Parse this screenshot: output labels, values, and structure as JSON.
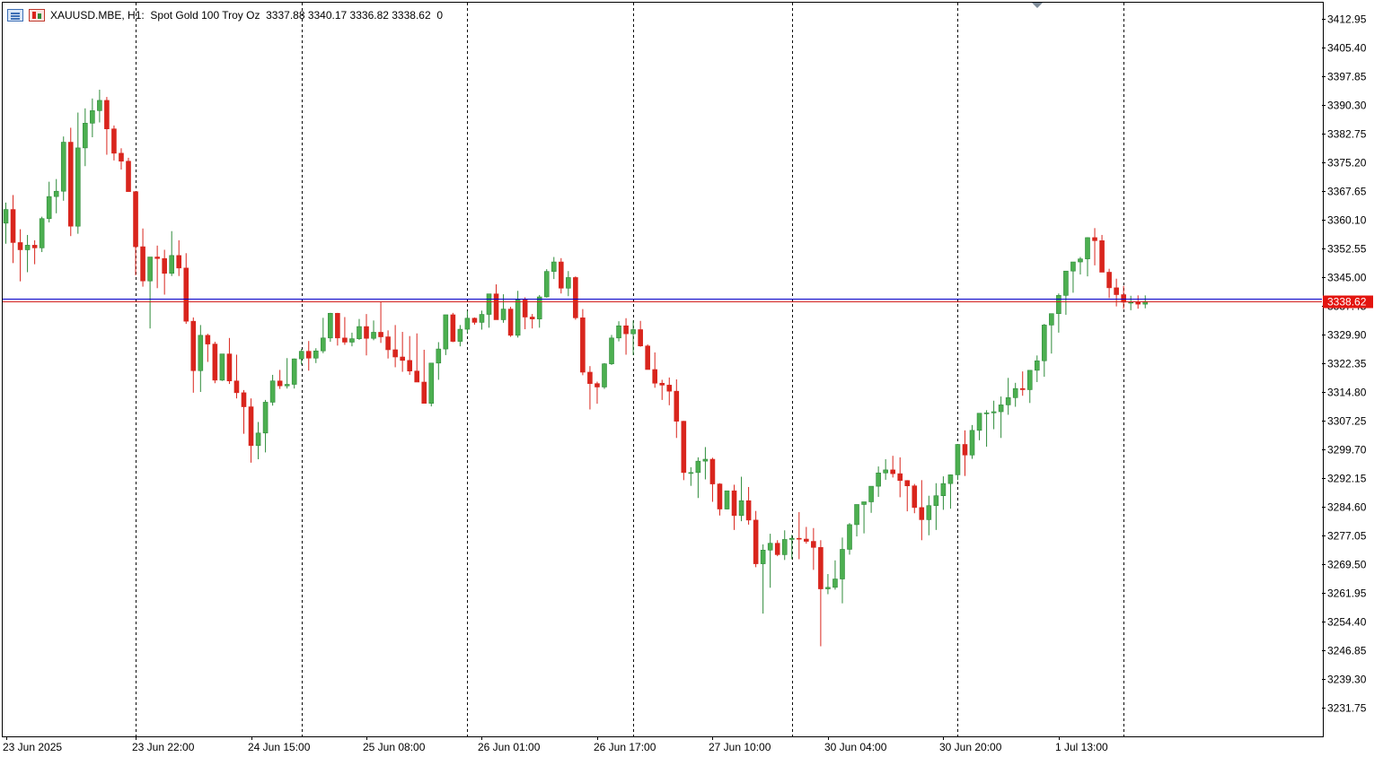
{
  "header": {
    "symbol": "XAUUSD.MBE",
    "timeframe": "H1:",
    "description": "Spot Gold 100 Troy Oz",
    "ohlc": "3337.88 3340.17 3336.82 3338.62",
    "extra": "0",
    "icons": [
      "symbol-menu-icon",
      "chart-type-icon"
    ]
  },
  "chart_data": {
    "type": "candlestick",
    "colors": {
      "up": "#2e8b3a",
      "up_fill": "#4caf50",
      "down": "#d9251d",
      "grid": "#000000",
      "bid_line": "#0000cd",
      "ask_line": "#d9251d",
      "price_label": "#e3140f"
    },
    "y_ticks": [
      "3412.95",
      "3405.40",
      "3397.85",
      "3390.30",
      "3382.75",
      "3375.20",
      "3367.65",
      "3360.10",
      "3352.55",
      "3345.00",
      "3337.45",
      "3329.90",
      "3322.35",
      "3314.80",
      "3307.25",
      "3299.70",
      "3292.15",
      "3284.60",
      "3277.05",
      "3269.50",
      "3261.95",
      "3254.40",
      "3246.85",
      "3239.30",
      "3231.75"
    ],
    "ylim": [
      3226.5,
      3417.0
    ],
    "x_labels": [
      "23 Jun 2025",
      "23 Jun 22:00",
      "24 Jun 15:00",
      "25 Jun 08:00",
      "26 Jun 01:00",
      "26 Jun 17:00",
      "27 Jun 10:00",
      "30 Jun 04:00",
      "30 Jun 20:00",
      "1 Jul 13:00"
    ],
    "x_label_index": [
      0,
      18,
      34,
      50,
      66,
      82,
      98,
      114,
      130,
      146
    ],
    "separator_index": [
      18,
      41,
      64,
      87,
      109,
      132,
      155
    ],
    "current_price": "3338.62",
    "bid": 3338.62,
    "ask": 3339.45,
    "candles": [
      [
        3359.2,
        3364.6,
        3353.8,
        3362.8
      ],
      [
        3362.8,
        3366.6,
        3348.7,
        3354.1
      ],
      [
        3354.1,
        3357.6,
        3343.9,
        3352.2
      ],
      [
        3352.2,
        3356.1,
        3346.3,
        3353.4
      ],
      [
        3353.4,
        3354.7,
        3348.4,
        3352.7
      ],
      [
        3352.7,
        3360.9,
        3351.6,
        3360.4
      ],
      [
        3360.4,
        3370.1,
        3359.4,
        3366.2
      ],
      [
        3366.2,
        3370.8,
        3361.8,
        3367.6
      ],
      [
        3367.6,
        3382.0,
        3365.1,
        3380.5
      ],
      [
        3380.5,
        3384.3,
        3355.8,
        3358.4
      ],
      [
        3358.4,
        3388.3,
        3356.4,
        3379.0
      ],
      [
        3379.0,
        3389.4,
        3374.2,
        3385.5
      ],
      [
        3385.5,
        3392.0,
        3381.8,
        3388.8
      ],
      [
        3388.8,
        3394.3,
        3385.7,
        3391.5
      ],
      [
        3391.5,
        3392.4,
        3377.2,
        3384.0
      ],
      [
        3384.0,
        3384.9,
        3375.7,
        3377.6
      ],
      [
        3377.6,
        3378.9,
        3373.3,
        3375.5
      ],
      [
        3375.5,
        3376.4,
        3367.5,
        3367.5
      ],
      [
        3367.5,
        3367.5,
        3345.5,
        3353.0
      ],
      [
        3353.0,
        3357.8,
        3342.5,
        3344.0
      ],
      [
        3344.0,
        3350.2,
        3331.5,
        3350.3
      ],
      [
        3350.3,
        3353.3,
        3342.1,
        3349.9
      ],
      [
        3349.9,
        3352.2,
        3340.4,
        3346.0
      ],
      [
        3346.0,
        3357.1,
        3345.3,
        3350.7
      ],
      [
        3350.7,
        3354.7,
        3345.3,
        3347.4
      ],
      [
        3347.4,
        3351.3,
        3332.7,
        3333.4
      ],
      [
        3333.4,
        3334.4,
        3314.6,
        3320.4
      ],
      [
        3320.4,
        3332.4,
        3314.8,
        3329.7
      ],
      [
        3329.7,
        3330.1,
        3322.7,
        3327.4
      ],
      [
        3327.4,
        3328.0,
        3317.1,
        3317.9
      ],
      [
        3317.9,
        3324.6,
        3317.7,
        3324.8
      ],
      [
        3324.8,
        3329.0,
        3316.9,
        3317.7
      ],
      [
        3317.7,
        3324.6,
        3313.1,
        3314.6
      ],
      [
        3314.6,
        3315.3,
        3303.8,
        3310.9
      ],
      [
        3310.9,
        3313.1,
        3296.2,
        3300.7
      ],
      [
        3300.7,
        3306.9,
        3297.1,
        3304.0
      ],
      [
        3304.0,
        3312.7,
        3298.9,
        3312.1
      ],
      [
        3312.1,
        3319.3,
        3311.2,
        3317.7
      ],
      [
        3317.7,
        3320.6,
        3315.6,
        3316.4
      ],
      [
        3316.4,
        3323.7,
        3315.7,
        3316.8
      ],
      [
        3316.8,
        3323.6,
        3315.7,
        3323.5
      ],
      [
        3323.5,
        3326.1,
        3322.0,
        3325.5
      ],
      [
        3325.5,
        3328.2,
        3320.4,
        3323.7
      ],
      [
        3323.7,
        3326.3,
        3322.4,
        3325.6
      ],
      [
        3325.6,
        3334.3,
        3325.0,
        3329.0
      ],
      [
        3329.0,
        3335.6,
        3328.0,
        3335.5
      ],
      [
        3335.5,
        3335.6,
        3327.0,
        3329.0
      ],
      [
        3329.0,
        3334.5,
        3327.2,
        3327.9
      ],
      [
        3327.9,
        3330.4,
        3326.8,
        3328.8
      ],
      [
        3328.8,
        3334.0,
        3328.5,
        3332.0
      ],
      [
        3332.0,
        3335.3,
        3324.4,
        3328.9
      ],
      [
        3328.9,
        3333.6,
        3328.4,
        3330.5
      ],
      [
        3330.5,
        3338.4,
        3327.7,
        3329.3
      ],
      [
        3329.3,
        3331.0,
        3323.6,
        3325.9
      ],
      [
        3325.9,
        3332.4,
        3321.3,
        3324.0
      ],
      [
        3324.0,
        3330.6,
        3320.1,
        3323.1
      ],
      [
        3323.1,
        3329.5,
        3319.3,
        3320.3
      ],
      [
        3320.3,
        3330.2,
        3318.7,
        3317.4
      ],
      [
        3317.4,
        3325.9,
        3312.3,
        3311.8
      ],
      [
        3311.8,
        3322.4,
        3311.0,
        3322.4
      ],
      [
        3322.4,
        3327.9,
        3318.0,
        3326.1
      ],
      [
        3326.1,
        3335.1,
        3324.5,
        3335.1
      ],
      [
        3335.1,
        3335.6,
        3327.9,
        3328.1
      ],
      [
        3328.1,
        3332.4,
        3326.8,
        3331.3
      ],
      [
        3331.3,
        3336.2,
        3330.3,
        3334.2
      ],
      [
        3334.2,
        3334.4,
        3332.5,
        3333.1
      ],
      [
        3333.1,
        3336.2,
        3331.2,
        3335.2
      ],
      [
        3335.2,
        3340.6,
        3331.7,
        3340.6
      ],
      [
        3340.6,
        3343.1,
        3334.6,
        3333.8
      ],
      [
        3333.8,
        3340.5,
        3333.0,
        3336.6
      ],
      [
        3336.6,
        3337.2,
        3329.3,
        3329.7
      ],
      [
        3329.7,
        3341.4,
        3329.1,
        3339.0
      ],
      [
        3339.0,
        3339.7,
        3331.3,
        3334.5
      ],
      [
        3334.5,
        3335.3,
        3331.5,
        3334.0
      ],
      [
        3334.0,
        3340.3,
        3331.7,
        3339.8
      ],
      [
        3339.8,
        3347.1,
        3339.6,
        3346.5
      ],
      [
        3346.5,
        3350.3,
        3344.5,
        3349.0
      ],
      [
        3349.0,
        3350.0,
        3340.7,
        3342.1
      ],
      [
        3342.1,
        3346.6,
        3340.0,
        3344.9
      ],
      [
        3344.9,
        3345.2,
        3333.8,
        3334.3
      ],
      [
        3334.3,
        3336.6,
        3319.2,
        3320.0
      ],
      [
        3320.0,
        3321.6,
        3310.2,
        3317.0
      ],
      [
        3317.0,
        3317.5,
        3311.7,
        3316.1
      ],
      [
        3316.1,
        3322.4,
        3315.6,
        3322.2
      ],
      [
        3322.2,
        3329.8,
        3321.9,
        3329.0
      ],
      [
        3329.0,
        3333.4,
        3328.1,
        3332.2
      ],
      [
        3332.2,
        3334.2,
        3324.6,
        3330.1
      ],
      [
        3330.1,
        3333.6,
        3324.5,
        3331.2
      ],
      [
        3331.2,
        3333.5,
        3326.7,
        3326.9
      ],
      [
        3326.9,
        3327.3,
        3320.8,
        3320.7
      ],
      [
        3320.7,
        3325.2,
        3315.9,
        3317.1
      ],
      [
        3317.1,
        3318.0,
        3312.7,
        3316.6
      ],
      [
        3316.6,
        3318.6,
        3311.3,
        3315.0
      ],
      [
        3315.0,
        3318.1,
        3302.7,
        3307.1
      ],
      [
        3307.1,
        3307.2,
        3291.6,
        3293.6
      ],
      [
        3293.6,
        3295.0,
        3290.1,
        3293.6
      ],
      [
        3293.6,
        3297.6,
        3286.9,
        3296.6
      ],
      [
        3296.6,
        3300.3,
        3291.8,
        3297.1
      ],
      [
        3297.1,
        3297.5,
        3285.9,
        3290.6
      ],
      [
        3290.6,
        3290.8,
        3282.3,
        3284.0
      ],
      [
        3284.0,
        3288.5,
        3283.9,
        3288.8
      ],
      [
        3288.8,
        3290.4,
        3278.5,
        3282.3
      ],
      [
        3282.3,
        3292.5,
        3280.8,
        3286.2
      ],
      [
        3286.2,
        3289.8,
        3279.9,
        3281.1
      ],
      [
        3281.1,
        3283.5,
        3268.7,
        3269.6
      ],
      [
        3269.6,
        3274.7,
        3256.5,
        3273.2
      ],
      [
        3273.2,
        3277.5,
        3263.3,
        3275.0
      ],
      [
        3275.0,
        3275.8,
        3271.6,
        3272.0
      ],
      [
        3272.0,
        3278.4,
        3270.6,
        3276.0
      ],
      [
        3276.0,
        3277.2,
        3270.8,
        3276.3
      ],
      [
        3276.3,
        3283.2,
        3270.8,
        3276.1
      ],
      [
        3276.1,
        3279.3,
        3274.9,
        3275.5
      ],
      [
        3275.5,
        3279.0,
        3268.0,
        3273.9
      ],
      [
        3273.9,
        3275.8,
        3247.9,
        3263.0
      ],
      [
        3263.0,
        3266.9,
        3261.6,
        3263.4
      ],
      [
        3263.4,
        3270.5,
        3262.8,
        3265.6
      ],
      [
        3265.6,
        3276.5,
        3259.2,
        3273.4
      ],
      [
        3273.4,
        3280.3,
        3272.0,
        3279.9
      ],
      [
        3279.9,
        3283.5,
        3276.8,
        3285.2
      ],
      [
        3285.2,
        3285.6,
        3277.6,
        3285.9
      ],
      [
        3285.9,
        3289.9,
        3283.0,
        3290.0
      ],
      [
        3290.0,
        3295.2,
        3287.2,
        3293.5
      ],
      [
        3293.5,
        3297.1,
        3291.7,
        3294.3
      ],
      [
        3294.3,
        3298.0,
        3292.3,
        3293.3
      ],
      [
        3293.3,
        3297.6,
        3287.1,
        3291.5
      ],
      [
        3291.5,
        3291.6,
        3283.4,
        3290.1
      ],
      [
        3290.1,
        3290.6,
        3282.9,
        3284.4
      ],
      [
        3284.4,
        3291.6,
        3275.8,
        3281.2
      ],
      [
        3281.2,
        3287.5,
        3277.1,
        3284.9
      ],
      [
        3284.9,
        3290.8,
        3278.5,
        3287.5
      ],
      [
        3287.5,
        3292.6,
        3283.8,
        3290.7
      ],
      [
        3290.7,
        3293.1,
        3284.1,
        3293.0
      ],
      [
        3293.0,
        3301.1,
        3291.6,
        3301.0
      ],
      [
        3301.0,
        3304.7,
        3292.7,
        3298.2
      ],
      [
        3298.2,
        3306.1,
        3297.2,
        3304.7
      ],
      [
        3304.7,
        3309.1,
        3302.1,
        3309.2
      ],
      [
        3309.2,
        3310.0,
        3300.4,
        3309.3
      ],
      [
        3309.3,
        3312.5,
        3305.0,
        3309.6
      ],
      [
        3309.6,
        3313.6,
        3302.7,
        3311.4
      ],
      [
        3311.4,
        3318.5,
        3308.8,
        3313.3
      ],
      [
        3313.3,
        3317.2,
        3310.9,
        3315.7
      ],
      [
        3315.7,
        3320.2,
        3313.8,
        3315.4
      ],
      [
        3315.4,
        3320.0,
        3311.9,
        3320.5
      ],
      [
        3320.5,
        3324.4,
        3317.4,
        3323.0
      ],
      [
        3323.0,
        3332.7,
        3318.8,
        3332.4
      ],
      [
        3332.4,
        3335.3,
        3324.9,
        3335.4
      ],
      [
        3335.4,
        3340.7,
        3330.4,
        3340.2
      ],
      [
        3340.2,
        3346.4,
        3335.1,
        3346.6
      ],
      [
        3346.6,
        3348.1,
        3340.9,
        3349.0
      ],
      [
        3349.0,
        3350.3,
        3345.7,
        3349.8
      ],
      [
        3349.8,
        3355.5,
        3345.2,
        3355.4
      ],
      [
        3355.4,
        3357.9,
        3348.1,
        3354.6
      ],
      [
        3354.6,
        3356.1,
        3347.2,
        3346.3
      ],
      [
        3346.3,
        3347.2,
        3339.5,
        3342.2
      ],
      [
        3342.2,
        3344.6,
        3337.3,
        3340.4
      ],
      [
        3340.4,
        3342.7,
        3336.7,
        3338.4
      ],
      [
        3338.4,
        3340.1,
        3336.3,
        3338.4
      ],
      [
        3338.4,
        3340.2,
        3336.7,
        3337.9
      ],
      [
        3337.9,
        3340.2,
        3336.8,
        3338.6
      ]
    ]
  }
}
